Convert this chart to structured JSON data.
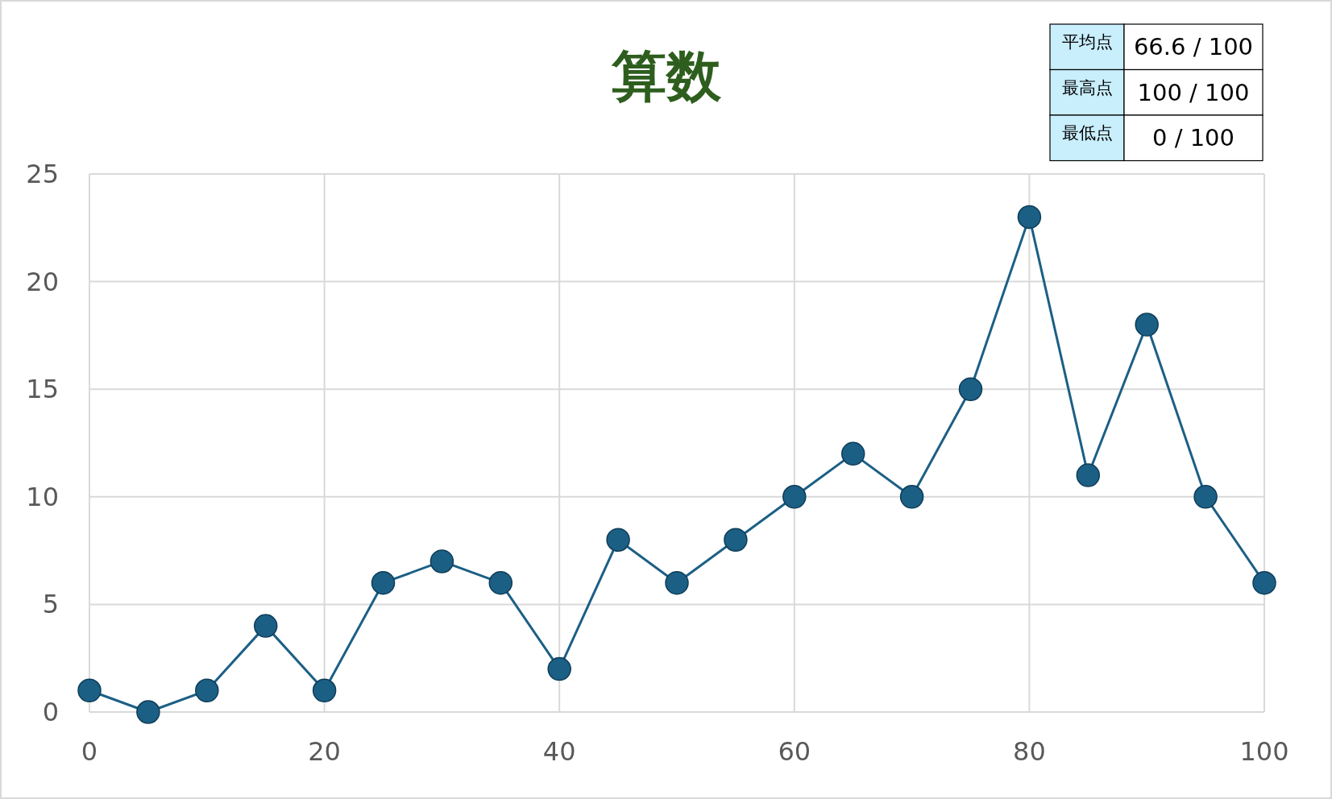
{
  "chart_data": {
    "type": "line",
    "title": "算数",
    "x": [
      0,
      5,
      10,
      15,
      20,
      25,
      30,
      35,
      40,
      45,
      50,
      55,
      60,
      65,
      70,
      75,
      80,
      85,
      90,
      95,
      100
    ],
    "series": [
      {
        "color": "#1c5f85",
        "values": [
          1,
          0,
          1,
          4,
          1,
          6,
          7,
          6,
          2,
          8,
          6,
          8,
          10,
          12,
          10,
          15,
          23,
          11,
          18,
          10,
          6
        ]
      }
    ],
    "xlim": [
      0,
      100
    ],
    "xticks": [
      0,
      20,
      40,
      60,
      80,
      100
    ],
    "ylim": [
      0,
      25
    ],
    "yticks": [
      0,
      5,
      10,
      15,
      20,
      25
    ],
    "grid": true,
    "marker": "circle",
    "line_style": "solid",
    "annotations": [
      "平均点",
      "66.6 / 100",
      "最高点",
      "100 / 100",
      "最低点",
      "0 / 100"
    ]
  }
}
